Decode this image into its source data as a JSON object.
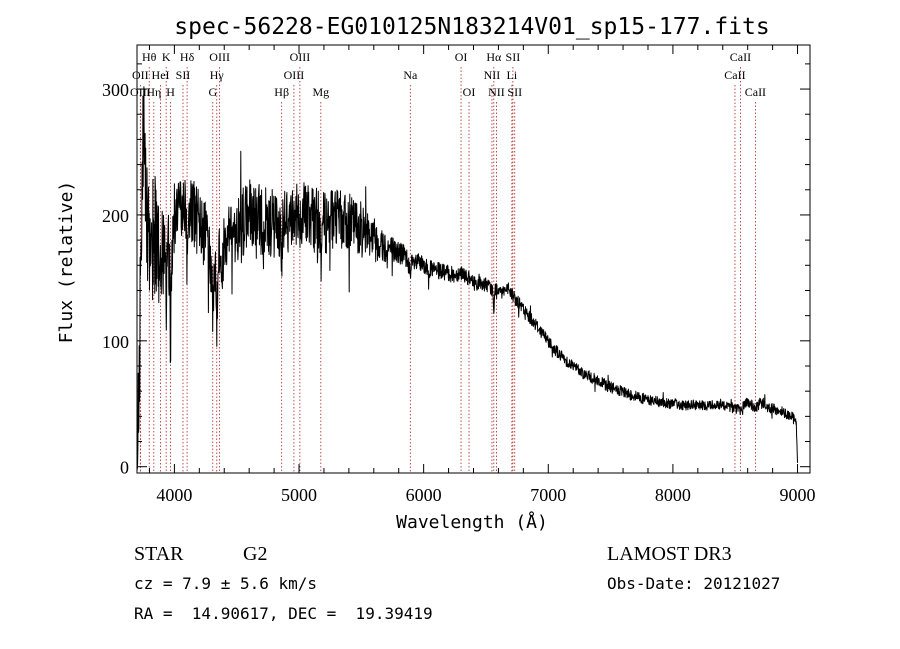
{
  "chart_data": {
    "type": "line",
    "title": "spec-56228-EG010125N183214V01_sp15-177.fits",
    "xlabel": "Wavelength (Å)",
    "ylabel": "Flux (relative)",
    "xlim": [
      3700,
      9100
    ],
    "ylim": [
      -5,
      335
    ],
    "xticks": [
      4000,
      5000,
      6000,
      7000,
      8000,
      9000
    ],
    "xtick_labels": [
      "4000",
      "5000",
      "6000",
      "7000",
      "8000",
      "9000"
    ],
    "yticks": [
      0,
      100,
      200,
      300
    ],
    "ytick_labels": [
      "0",
      "100",
      "200",
      "300"
    ],
    "series": [
      {
        "name": "spectrum",
        "anchors": [
          [
            3700,
            5
          ],
          [
            3705,
            40
          ],
          [
            3720,
            80
          ],
          [
            3735,
            200
          ],
          [
            3750,
            260
          ],
          [
            3765,
            230
          ],
          [
            3780,
            200
          ],
          [
            3800,
            180
          ],
          [
            3820,
            195
          ],
          [
            3840,
            175
          ],
          [
            3860,
            185
          ],
          [
            3880,
            165
          ],
          [
            3900,
            180
          ],
          [
            3920,
            170
          ],
          [
            3940,
            190
          ],
          [
            3960,
            160
          ],
          [
            3980,
            175
          ],
          [
            4000,
            200
          ],
          [
            4050,
            210
          ],
          [
            4100,
            205
          ],
          [
            4150,
            200
          ],
          [
            4200,
            200
          ],
          [
            4250,
            185
          ],
          [
            4300,
            150
          ],
          [
            4340,
            155
          ],
          [
            4400,
            175
          ],
          [
            4500,
            190
          ],
          [
            4600,
            200
          ],
          [
            4700,
            195
          ],
          [
            4800,
            192
          ],
          [
            4860,
            185
          ],
          [
            4900,
            195
          ],
          [
            5000,
            200
          ],
          [
            5100,
            200
          ],
          [
            5175,
            190
          ],
          [
            5250,
            198
          ],
          [
            5350,
            195
          ],
          [
            5450,
            192
          ],
          [
            5550,
            188
          ],
          [
            5650,
            178
          ],
          [
            5750,
            172
          ],
          [
            5850,
            168
          ],
          [
            5893,
            160
          ],
          [
            5950,
            162
          ],
          [
            6050,
            157
          ],
          [
            6150,
            155
          ],
          [
            6250,
            152
          ],
          [
            6300,
            155
          ],
          [
            6400,
            146
          ],
          [
            6500,
            145
          ],
          [
            6563,
            140
          ],
          [
            6600,
            143
          ],
          [
            6700,
            138
          ],
          [
            6800,
            125
          ],
          [
            6900,
            113
          ],
          [
            7000,
            100
          ],
          [
            7100,
            88
          ],
          [
            7200,
            80
          ],
          [
            7300,
            73
          ],
          [
            7400,
            68
          ],
          [
            7500,
            63
          ],
          [
            7600,
            59
          ],
          [
            7700,
            56
          ],
          [
            7800,
            53
          ],
          [
            7900,
            51
          ],
          [
            8000,
            50
          ],
          [
            8100,
            49
          ],
          [
            8200,
            48
          ],
          [
            8300,
            49
          ],
          [
            8400,
            50
          ],
          [
            8498,
            46
          ],
          [
            8542,
            45
          ],
          [
            8600,
            52
          ],
          [
            8662,
            46
          ],
          [
            8700,
            50
          ],
          [
            8800,
            46
          ],
          [
            8900,
            43
          ],
          [
            8950,
            40
          ],
          [
            8990,
            36
          ],
          [
            9000,
            3
          ]
        ],
        "absorption": [
          [
            3934,
            60
          ],
          [
            3969,
            70
          ],
          [
            4102,
            40
          ],
          [
            4226,
            25
          ],
          [
            4308,
            35
          ],
          [
            4340,
            40
          ],
          [
            4384,
            20
          ],
          [
            4861,
            30
          ],
          [
            5175,
            25
          ],
          [
            5893,
            12
          ],
          [
            6563,
            22
          ],
          [
            6595,
            6
          ]
        ],
        "noise_profile": [
          [
            3700,
            80
          ],
          [
            3800,
            70
          ],
          [
            4000,
            42
          ],
          [
            4200,
            38
          ],
          [
            4500,
            40
          ],
          [
            5000,
            42
          ],
          [
            5500,
            30
          ],
          [
            5800,
            14
          ],
          [
            6000,
            10
          ],
          [
            6500,
            8
          ],
          [
            7000,
            7
          ],
          [
            8000,
            6
          ],
          [
            9000,
            6
          ]
        ]
      }
    ],
    "line_markers": [
      {
        "label": "Hθ",
        "wavelength": 3798,
        "row": 0
      },
      {
        "label": "OII",
        "wavelength": 3727,
        "row": 1
      },
      {
        "label": "OIII",
        "wavelength": 3727,
        "row": 2
      },
      {
        "label": "K",
        "wavelength": 3934,
        "row": 0
      },
      {
        "label": "HeI",
        "wavelength": 3889,
        "row": 1
      },
      {
        "label": "Hη",
        "wavelength": 3835,
        "row": 2
      },
      {
        "label": "Hδ",
        "wavelength": 4102,
        "row": 0
      },
      {
        "label": "SII",
        "wavelength": 4069,
        "row": 1
      },
      {
        "label": "H",
        "wavelength": 3969,
        "row": 2
      },
      {
        "label": "OIII",
        "wavelength": 4363,
        "row": 0
      },
      {
        "label": "Hγ",
        "wavelength": 4340,
        "row": 1
      },
      {
        "label": "G",
        "wavelength": 4308,
        "row": 2
      },
      {
        "label": "OIII",
        "wavelength": 5007,
        "row": 0
      },
      {
        "label": "OIII",
        "wavelength": 4959,
        "row": 1
      },
      {
        "label": "Hβ",
        "wavelength": 4861,
        "row": 2
      },
      {
        "label": "Mg",
        "wavelength": 5175,
        "row": 2
      },
      {
        "label": "Na",
        "wavelength": 5893,
        "row": 1
      },
      {
        "label": "OI",
        "wavelength": 6300,
        "row": 0
      },
      {
        "label": "OI",
        "wavelength": 6364,
        "row": 2
      },
      {
        "label": "Hα",
        "wavelength": 6563,
        "row": 0
      },
      {
        "label": "SII",
        "wavelength": 6716,
        "row": 0
      },
      {
        "label": "NII",
        "wavelength": 6548,
        "row": 1
      },
      {
        "label": "Li",
        "wavelength": 6708,
        "row": 1
      },
      {
        "label": "NII",
        "wavelength": 6584,
        "row": 2
      },
      {
        "label": "SII",
        "wavelength": 6731,
        "row": 2
      },
      {
        "label": "CaII",
        "wavelength": 8542,
        "row": 0
      },
      {
        "label": "CaII",
        "wavelength": 8498,
        "row": 1
      },
      {
        "label": "CaII",
        "wavelength": 8662,
        "row": 2
      }
    ],
    "grid": false,
    "legend": "none"
  },
  "footer": {
    "object_class": "STAR",
    "subclass": "G2",
    "survey": "LAMOST DR3",
    "redshift": "cz = 7.9 ± 5.6 km/s",
    "obs_date": "Obs-Date: 20121027",
    "coords": "RA =  14.90617, DEC =  19.39419"
  },
  "colors": {
    "spectrum": "#000000",
    "marker_line": "#b22222",
    "axis": "#000000"
  }
}
